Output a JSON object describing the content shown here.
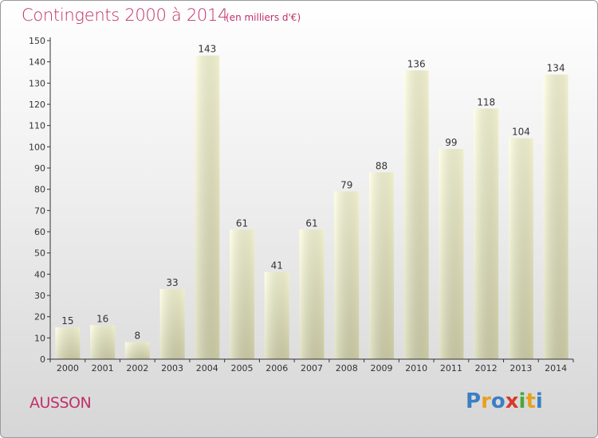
{
  "header": {
    "title": "Contingents 2000 à 2014",
    "subtitle": "(en milliers d'€)"
  },
  "footer": {
    "commune": "AUSSON",
    "logo": "Proxiti"
  },
  "colors": {
    "title": "#c0306a",
    "bar_top": "#ffffdc",
    "bar_bottom": "#d8d8b0",
    "axis": "#333333"
  },
  "chart_data": {
    "type": "bar",
    "title": "Contingents 2000 à 2014",
    "subtitle": "(en milliers d'€)",
    "xlabel": "",
    "ylabel": "",
    "categories": [
      "2000",
      "2001",
      "2002",
      "2003",
      "2004",
      "2005",
      "2006",
      "2007",
      "2008",
      "2009",
      "2010",
      "2011",
      "2012",
      "2013",
      "2014"
    ],
    "values": [
      15,
      16,
      8,
      33,
      143,
      61,
      41,
      61,
      79,
      88,
      136,
      99,
      118,
      104,
      134
    ],
    "ylim": [
      0,
      150
    ],
    "yticks": [
      0,
      10,
      20,
      30,
      40,
      50,
      60,
      70,
      80,
      90,
      100,
      110,
      120,
      130,
      140,
      150
    ],
    "grid": false,
    "legend": "none",
    "data_labels": true
  }
}
